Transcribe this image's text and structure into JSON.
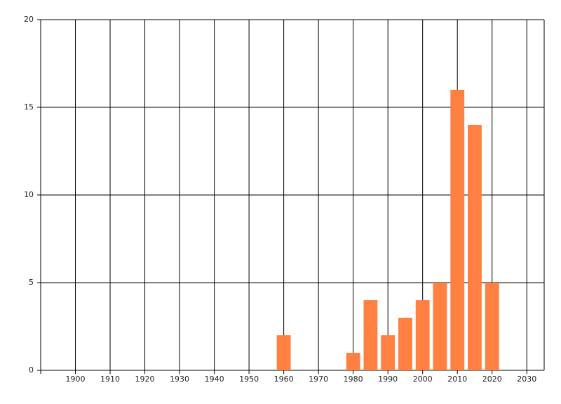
{
  "chart_data": {
    "type": "bar",
    "x": [
      1960,
      1980,
      1985,
      1990,
      1995,
      2000,
      2005,
      2010,
      2015,
      2020
    ],
    "values": [
      2,
      1,
      4,
      2,
      3,
      4,
      5,
      16,
      14,
      5
    ],
    "color": "#ff8040",
    "xlim": [
      1890,
      2035
    ],
    "xticks": [
      1900,
      1910,
      1920,
      1930,
      1940,
      1950,
      1960,
      1970,
      1980,
      1990,
      2000,
      2010,
      2020,
      2030
    ],
    "ylim": [
      0,
      20
    ],
    "yticks": [
      0,
      5,
      10,
      15,
      20
    ],
    "grid": true
  }
}
